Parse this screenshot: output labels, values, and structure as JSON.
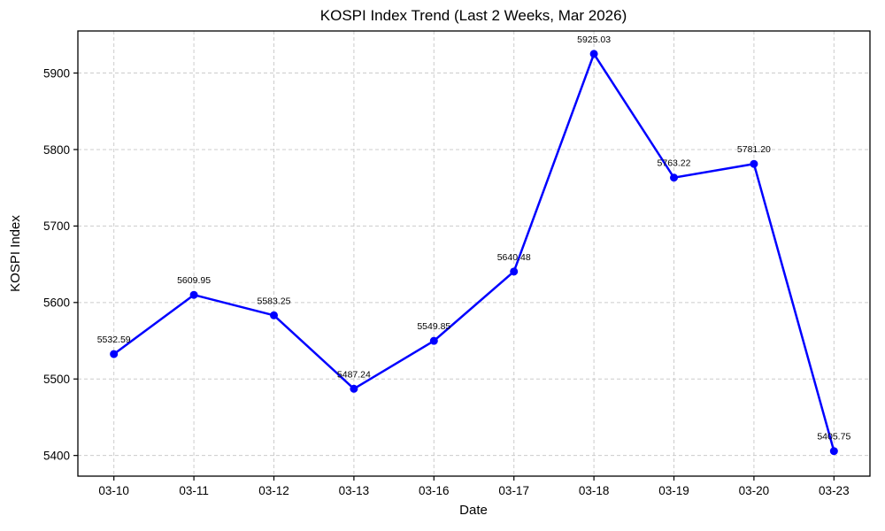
{
  "chart_data": {
    "type": "line",
    "title": "KOSPI Index Trend (Last 2 Weeks, Mar 2026)",
    "xlabel": "Date",
    "ylabel": "KOSPI Index",
    "categories": [
      "03-10",
      "03-11",
      "03-12",
      "03-13",
      "03-16",
      "03-17",
      "03-18",
      "03-19",
      "03-20",
      "03-23"
    ],
    "series": [
      {
        "name": "KOSPI Index",
        "values": [
          5532.59,
          5609.95,
          5583.25,
          5487.24,
          5549.85,
          5640.48,
          5925.03,
          5763.22,
          5781.2,
          5405.75
        ]
      }
    ],
    "point_labels": [
      "5532.59",
      "5609.95",
      "5583.25",
      "5487.24",
      "5549.85",
      "5640.48",
      "5925.03",
      "5763.22",
      "5781.20",
      "5405.75"
    ],
    "yticks": [
      5400,
      5500,
      5600,
      5700,
      5800,
      5900
    ],
    "ylim": [
      5373,
      5955
    ],
    "grid": true,
    "legend_visible": false,
    "colors": {
      "line": "#0000ff",
      "marker": "#0000ff",
      "grid": "#cccccc",
      "spine": "#000000",
      "text": "#000000",
      "background": "#ffffff"
    }
  }
}
